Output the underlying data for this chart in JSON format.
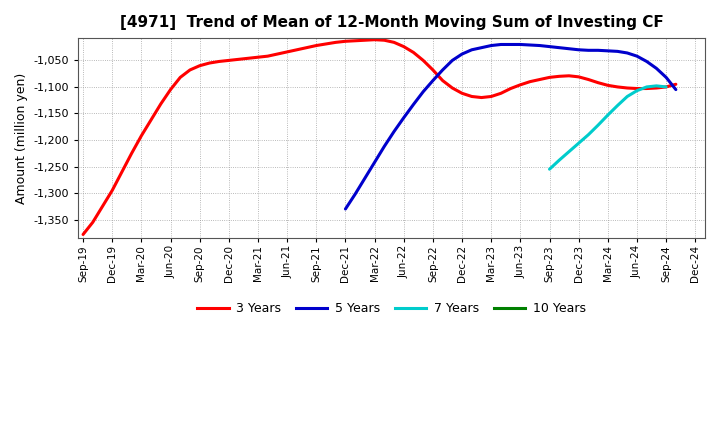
{
  "title": "[4971]  Trend of Mean of 12-Month Moving Sum of Investing CF",
  "ylabel": "Amount (million yen)",
  "background_color": "#ffffff",
  "plot_bg_color": "#ffffff",
  "ylim": [
    -1385,
    -1008
  ],
  "yticks": [
    -1350,
    -1300,
    -1250,
    -1200,
    -1150,
    -1100,
    -1050
  ],
  "grid_color": "#aaaaaa",
  "series": {
    "3yr": {
      "color": "#ff0000",
      "label": "3 Years",
      "x": [
        0,
        1,
        2,
        3,
        4,
        5,
        6,
        7,
        8,
        9,
        10,
        11,
        12,
        13,
        14,
        15,
        16,
        17,
        18,
        19,
        20,
        21,
        22,
        23,
        24,
        25,
        26,
        27,
        28,
        29,
        30,
        31,
        32,
        33,
        34,
        35,
        36,
        37,
        38,
        39,
        40,
        41,
        42,
        43,
        44,
        45,
        46,
        47,
        48,
        49,
        50,
        51,
        52,
        53,
        54,
        55,
        56,
        57,
        58,
        59,
        60,
        61
      ],
      "y": [
        -1378,
        -1355,
        -1325,
        -1295,
        -1260,
        -1225,
        -1192,
        -1162,
        -1132,
        -1105,
        -1082,
        -1068,
        -1060,
        -1055,
        -1052,
        -1050,
        -1048,
        -1046,
        -1044,
        -1042,
        -1038,
        -1034,
        -1030,
        -1026,
        -1022,
        -1019,
        -1016,
        -1014,
        -1013,
        -1012,
        -1011,
        -1012,
        -1016,
        -1024,
        -1035,
        -1050,
        -1068,
        -1088,
        -1102,
        -1112,
        -1118,
        -1120,
        -1118,
        -1112,
        -1103,
        -1096,
        -1090,
        -1086,
        -1082,
        -1080,
        -1079,
        -1081,
        -1086,
        -1092,
        -1097,
        -1100,
        -1102,
        -1103,
        -1103,
        -1102,
        -1100,
        -1095
      ]
    },
    "5yr": {
      "color": "#0000cc",
      "label": "5 Years",
      "x": [
        27,
        28,
        29,
        30,
        31,
        32,
        33,
        34,
        35,
        36,
        37,
        38,
        39,
        40,
        41,
        42,
        43,
        44,
        45,
        46,
        47,
        48,
        49,
        50,
        51,
        52,
        53,
        54,
        55,
        56,
        57,
        58,
        59,
        60,
        61
      ],
      "y": [
        -1330,
        -1302,
        -1272,
        -1242,
        -1212,
        -1184,
        -1158,
        -1133,
        -1109,
        -1088,
        -1068,
        -1050,
        -1038,
        -1030,
        -1026,
        -1022,
        -1020,
        -1020,
        -1020,
        -1021,
        -1022,
        -1024,
        -1026,
        -1028,
        -1030,
        -1031,
        -1031,
        -1032,
        -1033,
        -1036,
        -1042,
        -1052,
        -1065,
        -1082,
        -1105
      ]
    },
    "7yr": {
      "color": "#00cccc",
      "label": "7 Years",
      "x": [
        48,
        49,
        50,
        51,
        52,
        53,
        54,
        55,
        56,
        57,
        58,
        59,
        60
      ],
      "y": [
        -1255,
        -1238,
        -1222,
        -1206,
        -1190,
        -1172,
        -1153,
        -1135,
        -1118,
        -1107,
        -1100,
        -1098,
        -1100
      ]
    },
    "10yr": {
      "color": "#008000",
      "label": "10 Years",
      "x": [],
      "y": []
    }
  },
  "xtick_labels": [
    "Sep-19",
    "Dec-19",
    "Mar-20",
    "Jun-20",
    "Sep-20",
    "Dec-20",
    "Mar-21",
    "Jun-21",
    "Sep-21",
    "Dec-21",
    "Mar-22",
    "Jun-22",
    "Sep-22",
    "Dec-22",
    "Mar-23",
    "Jun-23",
    "Sep-23",
    "Dec-23",
    "Mar-24",
    "Jun-24",
    "Sep-24",
    "Dec-24"
  ],
  "xtick_positions": [
    0,
    3,
    6,
    9,
    12,
    15,
    18,
    21,
    24,
    27,
    30,
    33,
    36,
    39,
    42,
    45,
    48,
    51,
    54,
    57,
    60,
    63
  ],
  "linewidth": 2.2
}
